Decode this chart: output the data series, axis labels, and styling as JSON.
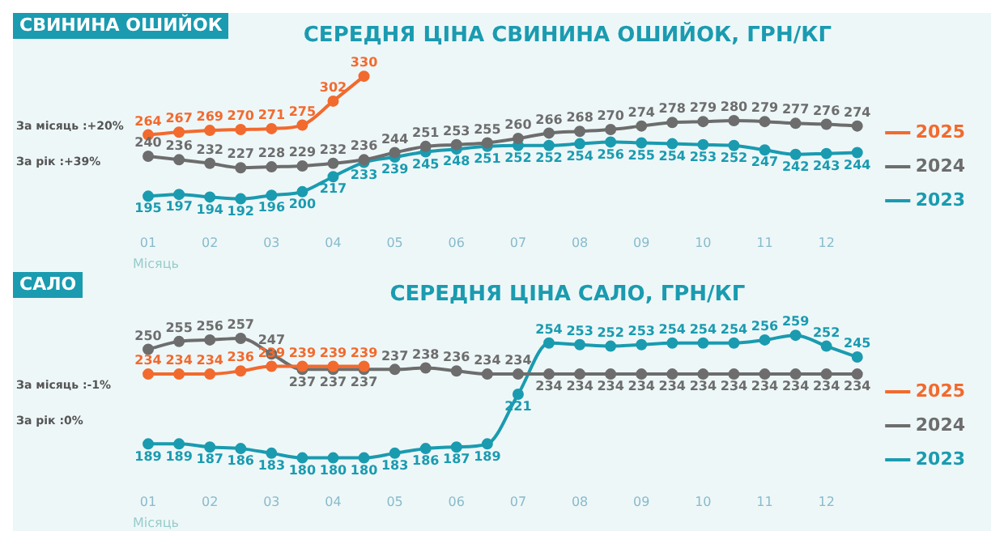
{
  "chart_data": [
    {
      "type": "line",
      "subtitle": "СВИНИНА ОШИЙОК",
      "title": "СЕРЕДНЯ ЦІНА СВИНИНА ОШИЙОК, ГРН/КГ",
      "xlabel": "Місяць",
      "categories": [
        "01",
        null,
        "02",
        null,
        "03",
        null,
        "04",
        null,
        "05",
        null,
        "06",
        null,
        "07",
        null,
        "08",
        null,
        "09",
        null,
        "10",
        null,
        "11",
        null,
        "12",
        null
      ],
      "series": [
        {
          "name": "2025",
          "color": "#f26a2e",
          "values": [
            264,
            267,
            269,
            270,
            271,
            275,
            302,
            330,
            null,
            null,
            null,
            null,
            null,
            null,
            null,
            null,
            null,
            null,
            null,
            null,
            null,
            null,
            null,
            null
          ]
        },
        {
          "name": "2024",
          "color": "#6d6d6d",
          "values": [
            240,
            236,
            232,
            227,
            228,
            229,
            232,
            236,
            244,
            251,
            253,
            255,
            260,
            266,
            268,
            270,
            274,
            278,
            279,
            280,
            279,
            277,
            276,
            274
          ]
        },
        {
          "name": "2023",
          "color": "#1a9bb0",
          "values": [
            195,
            197,
            194,
            192,
            196,
            200,
            217,
            233,
            239,
            245,
            248,
            251,
            252,
            252,
            254,
            256,
            255,
            254,
            253,
            252,
            247,
            242,
            243,
            244
          ]
        }
      ],
      "annotations": [
        "За місяць :+20%",
        "За рік :+39%"
      ],
      "data_labels": true,
      "legend": "right",
      "marker": "circle",
      "grid": false,
      "tick_labels": "x"
    },
    {
      "type": "line",
      "subtitle": "САЛО",
      "title": "СЕРЕДНЯ ЦІНА САЛО, ГРН/КГ",
      "xlabel": "Місяць",
      "categories": [
        "01",
        null,
        "02",
        null,
        "03",
        null,
        "04",
        null,
        "05",
        null,
        "06",
        null,
        "07",
        null,
        "08",
        null,
        "09",
        null,
        "10",
        null,
        "11",
        null,
        "12",
        null
      ],
      "series": [
        {
          "name": "2025",
          "color": "#f26a2e",
          "values": [
            234,
            234,
            234,
            236,
            239,
            239,
            239,
            239,
            null,
            null,
            null,
            null,
            null,
            null,
            null,
            null,
            null,
            null,
            null,
            null,
            null,
            null,
            null,
            null
          ]
        },
        {
          "name": "2024",
          "color": "#6d6d6d",
          "values": [
            250,
            255,
            256,
            257,
            247,
            237,
            237,
            237,
            237,
            238,
            236,
            234,
            234,
            234,
            234,
            234,
            234,
            234,
            234,
            234,
            234,
            234,
            234,
            234
          ]
        },
        {
          "name": "2023",
          "color": "#1a9bb0",
          "values": [
            189,
            189,
            187,
            186,
            183,
            180,
            180,
            180,
            183,
            186,
            187,
            189,
            221,
            254,
            253,
            252,
            253,
            254,
            254,
            254,
            256,
            259,
            252,
            245
          ]
        }
      ],
      "annotations": [
        "За місяць :-1%",
        "За рік :0%"
      ],
      "data_labels": true,
      "legend": "right",
      "marker": "circle",
      "grid": false,
      "tick_labels": "x"
    }
  ]
}
